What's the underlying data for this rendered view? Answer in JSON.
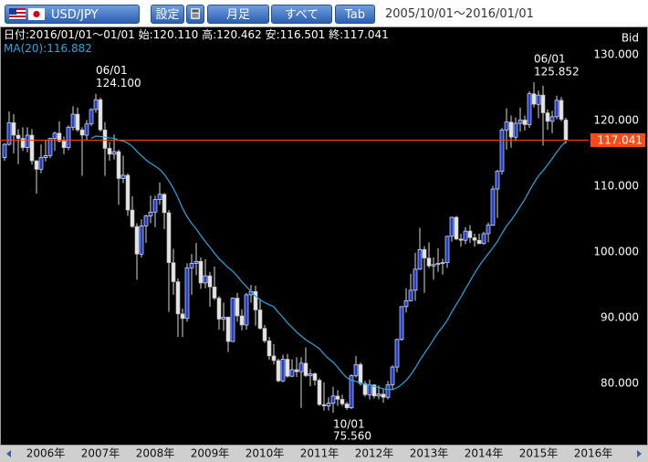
{
  "toolbar": {
    "symbol": "USD/JPY",
    "settings": "設定",
    "timeframe": "月足",
    "range": "すべて",
    "tab": "Tab",
    "period": "2005/10/01～2016/01/01"
  },
  "chart_data": {
    "type": "candlestick",
    "info": {
      "date": "日付:2016/01/01～01/01",
      "open": "始:120.110",
      "high": "高:120.462",
      "low": "安:116.501",
      "close": "終:117.041"
    },
    "price_label": "Bid",
    "categories": [
      null,
      null,
      null,
      "2006年",
      null,
      null,
      null,
      null,
      null,
      null,
      null,
      null,
      null,
      null,
      null,
      "2007年",
      null,
      null,
      null,
      null,
      null,
      null,
      null,
      null,
      null,
      null,
      null,
      "2008年",
      null,
      null,
      null,
      null,
      null,
      null,
      null,
      null,
      null,
      null,
      null,
      "2009年",
      null,
      null,
      null,
      null,
      null,
      null,
      null,
      null,
      null,
      null,
      null,
      "2010年",
      null,
      null,
      null,
      null,
      null,
      null,
      null,
      null,
      null,
      null,
      null,
      "2011年",
      null,
      null,
      null,
      null,
      null,
      null,
      null,
      null,
      null,
      null,
      null,
      "2012年",
      null,
      null,
      null,
      null,
      null,
      null,
      null,
      null,
      null,
      null,
      null,
      "2013年",
      null,
      null,
      null,
      null,
      null,
      null,
      null,
      null,
      null,
      null,
      null,
      "2014年",
      null,
      null,
      null,
      null,
      null,
      null,
      null,
      null,
      null,
      null,
      null,
      "2015年",
      null,
      null,
      null,
      null,
      null,
      null,
      null,
      null,
      null,
      null,
      null,
      "2016年"
    ],
    "open": [
      114.4,
      116.4,
      119.7,
      117.8,
      117.3,
      115.9,
      117.8,
      113.9,
      112.6,
      114.4,
      114.7,
      117.3,
      118.1,
      116.9,
      115.9,
      119.0,
      121.0,
      118.6,
      117.8,
      119.5,
      121.7,
      123.2,
      118.6,
      115.8,
      114.9,
      115.3,
      111.2,
      111.7,
      106.4,
      103.9,
      99.7,
      104.0,
      105.5,
      106.1,
      108.0,
      108.8,
      106.0,
      98.4,
      95.5,
      90.6,
      89.9,
      97.6,
      98.3,
      98.6,
      95.3,
      96.4,
      94.7,
      93.0,
      89.8,
      90.1,
      86.4,
      93.0,
      90.3,
      88.9,
      93.5,
      94.0,
      91.2,
      88.4,
      86.5,
      84.2,
      83.5,
      80.4,
      83.7,
      81.1,
      82.1,
      81.8,
      83.1,
      81.2,
      81.5,
      80.5,
      76.8,
      76.6,
      77.0,
      78.1,
      77.6,
      76.9,
      76.3,
      81.2,
      82.9,
      80.0,
      78.3,
      79.8,
      78.1,
      78.4,
      77.9,
      79.8,
      82.5,
      86.7,
      91.7,
      92.6,
      94.2,
      97.4,
      100.4,
      99.1,
      97.9,
      98.1,
      98.3,
      98.4,
      102.4,
      105.3,
      102.0,
      101.8,
      103.2,
      102.2,
      101.8,
      101.3,
      102.8,
      104.1,
      109.6,
      112.3,
      118.6,
      119.8,
      117.5,
      119.6,
      120.1,
      119.4,
      124.1,
      122.5,
      123.9,
      121.2,
      119.9,
      120.6,
      123.1,
      120.11
    ],
    "high": [
      116.6,
      121.4,
      121.0,
      118.7,
      119.0,
      119.0,
      118.7,
      114.0,
      116.4,
      117.0,
      117.4,
      118.3,
      119.9,
      117.6,
      119.3,
      122.2,
      122.0,
      119.0,
      120.1,
      121.9,
      124.1,
      123.5,
      119.8,
      116.8,
      117.9,
      115.6,
      114.7,
      112.0,
      108.5,
      104.4,
      105.0,
      105.7,
      108.6,
      108.6,
      110.6,
      109.0,
      106.4,
      100.5,
      96.0,
      91.4,
      98.3,
      99.7,
      101.4,
      99.2,
      98.9,
      97.0,
      97.8,
      93.3,
      92.3,
      90.2,
      93.1,
      93.8,
      91.3,
      93.8,
      95.0,
      94.9,
      92.8,
      88.9,
      87.1,
      86.0,
      83.8,
      84.4,
      84.5,
      83.7,
      84.0,
      84.0,
      85.5,
      82.2,
      81.7,
      80.8,
      80.2,
      77.9,
      79.5,
      79.0,
      78.3,
      77.2,
      81.4,
      84.2,
      83.2,
      80.4,
      80.6,
      79.9,
      79.7,
      79.2,
      80.4,
      82.8,
      86.8,
      91.8,
      94.5,
      96.7,
      99.9,
      103.7,
      100.9,
      101.5,
      99.2,
      100.6,
      99.0,
      102.5,
      105.4,
      105.5,
      102.8,
      103.8,
      104.1,
      102.8,
      102.8,
      103.1,
      104.5,
      110.1,
      112.5,
      118.9,
      121.9,
      120.8,
      120.5,
      122.0,
      120.8,
      124.5,
      125.852,
      124.6,
      125.3,
      121.7,
      121.5,
      123.8,
      123.6,
      120.462
    ],
    "low": [
      113.9,
      116.2,
      115.0,
      113.4,
      115.4,
      115.2,
      113.3,
      108.9,
      112.0,
      113.8,
      114.3,
      115.4,
      116.7,
      114.9,
      115.5,
      118.5,
      118.3,
      111.6,
      117.0,
      119.2,
      121.2,
      118.3,
      111.6,
      113.9,
      114.1,
      107.2,
      110.5,
      105.5,
      103.7,
      95.8,
      99.2,
      101.4,
      104.4,
      103.8,
      107.2,
      103.5,
      90.9,
      93.5,
      87.1,
      87.1,
      89.4,
      93.5,
      96.5,
      94.4,
      94.5,
      91.7,
      92.7,
      88.2,
      88.0,
      84.8,
      86.3,
      89.4,
      88.1,
      88.2,
      92.3,
      88.8,
      88.2,
      86.2,
      83.6,
      82.9,
      80.2,
      80.2,
      80.9,
      81.0,
      81.0,
      76.3,
      81.0,
      79.6,
      79.7,
      76.6,
      75.9,
      75.9,
      75.56,
      76.6,
      76.6,
      76.0,
      76.1,
      80.9,
      79.7,
      78.0,
      77.6,
      77.7,
      77.6,
      77.1,
      77.6,
      79.1,
      81.7,
      86.5,
      90.8,
      92.5,
      92.6,
      97.3,
      93.8,
      97.6,
      95.8,
      97.0,
      96.6,
      97.6,
      101.6,
      101.8,
      100.8,
      101.2,
      101.4,
      100.8,
      101.2,
      101.1,
      101.5,
      104.0,
      105.2,
      111.8,
      115.6,
      115.9,
      116.9,
      118.3,
      118.5,
      118.9,
      122.0,
      120.4,
      116.2,
      118.6,
      118.1,
      120.2,
      119.9,
      116.501
    ],
    "close": [
      116.4,
      119.7,
      117.8,
      117.3,
      115.9,
      117.8,
      113.9,
      112.6,
      114.4,
      114.7,
      117.3,
      118.1,
      116.9,
      115.9,
      119.0,
      121.0,
      118.6,
      117.8,
      119.5,
      121.7,
      123.2,
      118.6,
      115.8,
      114.9,
      115.3,
      111.2,
      111.7,
      106.4,
      103.9,
      99.7,
      104.0,
      105.5,
      106.1,
      108.0,
      108.8,
      106.0,
      98.4,
      95.5,
      90.6,
      89.9,
      97.6,
      98.3,
      98.6,
      95.3,
      96.4,
      94.7,
      93.0,
      89.8,
      90.1,
      86.4,
      93.0,
      90.3,
      88.9,
      93.5,
      94.0,
      91.2,
      88.4,
      86.5,
      84.2,
      83.5,
      80.4,
      83.7,
      81.1,
      82.1,
      81.8,
      83.1,
      81.2,
      81.5,
      80.5,
      76.8,
      76.6,
      77.0,
      78.1,
      77.6,
      76.9,
      76.3,
      81.2,
      82.9,
      80.0,
      78.3,
      79.8,
      78.1,
      78.4,
      77.9,
      79.8,
      82.5,
      86.7,
      91.7,
      92.6,
      94.2,
      97.4,
      100.4,
      99.1,
      97.9,
      98.1,
      98.3,
      98.4,
      102.4,
      105.3,
      102.0,
      101.8,
      103.2,
      102.2,
      101.8,
      101.3,
      102.8,
      104.1,
      109.6,
      112.3,
      118.6,
      119.8,
      117.5,
      119.6,
      120.1,
      119.4,
      124.1,
      122.5,
      123.9,
      121.2,
      119.9,
      120.6,
      123.1,
      120.2,
      117.041
    ],
    "up_color": "#1f3fd0",
    "down_color": "#e4e4e4",
    "ma": {
      "label": "MA(20):116.882",
      "color": "#2aa8e0",
      "values": [
        null,
        null,
        null,
        null,
        null,
        null,
        null,
        null,
        null,
        null,
        null,
        null,
        null,
        null,
        null,
        null,
        null,
        null,
        null,
        117.32,
        117.66,
        117.6,
        117.5,
        117.38,
        117.35,
        117.02,
        116.91,
        116.6,
        116.08,
        115.33,
        114.66,
        114.03,
        113.49,
        113.1,
        112.59,
        111.84,
        110.83,
        109.71,
        108.27,
        106.68,
        105.4,
        104.38,
        103.52,
        102.54,
        101.6,
        100.77,
        99.84,
        99.0,
        98.32,
        97.65,
        97.1,
        96.34,
        95.48,
        94.76,
        94.02,
        93.28,
        92.78,
        92.33,
        92.0,
        91.69,
        90.83,
        90.1,
        89.22,
        88.56,
        87.83,
        87.25,
        86.66,
        86.25,
        85.77,
        85.29,
        84.47,
        83.8,
        83.26,
        82.47,
        81.61,
        80.87,
        80.51,
        80.33,
        80.12,
        79.86,
        79.83,
        79.55,
        79.41,
        79.2,
        79.1,
        79.07,
        79.35,
        79.86,
        80.46,
        81.33,
        82.37,
        83.54,
        84.59,
        85.61,
        86.67,
        87.77,
        88.63,
        89.6,
        90.87,
        92.05,
        93.15,
        94.41,
        95.6,
        96.79,
        97.87,
        98.88,
        99.75,
        100.65,
        101.63,
        102.85,
        103.97,
        104.83,
        105.85,
        106.96,
        108.03,
        109.32,
        110.52,
        111.6,
        112.39,
        113.29,
        114.23,
        115.22,
        116.12,
        116.882
      ]
    },
    "last_price": 117.041,
    "last_price_color": "#ff4a12",
    "annotations": [
      {
        "date": "06/01",
        "value": 124.1,
        "label": "124.100"
      },
      {
        "date": "06/01",
        "value": 125.852,
        "label": "125.852"
      },
      {
        "date": "10/01",
        "value": 75.56,
        "label": "75.560"
      }
    ],
    "ylim": [
      70.7,
      134.2
    ],
    "yticks": [
      {
        "value": 80,
        "label": "80.000"
      },
      {
        "value": 90,
        "label": "90.000"
      },
      {
        "value": 100,
        "label": "100.000"
      },
      {
        "value": 110,
        "label": "110.000"
      },
      {
        "value": 120,
        "label": "120.000"
      },
      {
        "value": 130,
        "label": "130.000"
      }
    ]
  }
}
